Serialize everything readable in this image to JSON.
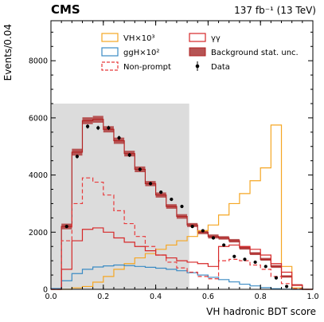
{
  "chart_data": {
    "type": "histogram",
    "experiment": "CMS",
    "lumi_label": "137 fb⁻¹ (13 TeV)",
    "xlabel": "VH hadronic BDT score",
    "ylabel": "Events/0.04",
    "xlim": [
      0,
      1
    ],
    "ylim": [
      0,
      9400
    ],
    "x_ticks": [
      "0.0",
      "0.2",
      "0.4",
      "0.6",
      "0.8",
      "1.0"
    ],
    "y_ticks": [
      "0",
      "2000",
      "4000",
      "6000",
      "8000"
    ],
    "bin_edges": [
      0.0,
      0.04,
      0.08,
      0.12,
      0.16,
      0.2,
      0.24,
      0.28,
      0.32,
      0.36,
      0.4,
      0.44,
      0.48,
      0.52,
      0.56,
      0.6,
      0.64,
      0.68,
      0.72,
      0.76,
      0.8,
      0.84,
      0.88,
      0.92,
      0.96,
      1.0
    ],
    "blinded_region": {
      "x": [
        0.0,
        0.528
      ],
      "y_top": 6500
    },
    "legend": {
      "columns": [
        [
          "VH×10³",
          "ggH×10²",
          "Non-prompt"
        ],
        [
          "γγ",
          "Background stat. unc.",
          "Data"
        ]
      ]
    },
    "series": [
      {
        "name": "VH×10³",
        "style": "step",
        "color": "#f5a623",
        "values": [
          0,
          0,
          50,
          100,
          250,
          450,
          700,
          900,
          1100,
          1250,
          1400,
          1550,
          1700,
          1850,
          2050,
          2250,
          2600,
          3000,
          3350,
          3800,
          4250,
          5750,
          800,
          50,
          0
        ]
      },
      {
        "name": "ggH×10²",
        "style": "step",
        "color": "#3b8bc4",
        "values": [
          30,
          300,
          550,
          700,
          780,
          820,
          850,
          830,
          800,
          770,
          740,
          700,
          650,
          580,
          500,
          420,
          340,
          260,
          180,
          120,
          60,
          20,
          5,
          0,
          0
        ]
      },
      {
        "name": "Non-prompt",
        "style": "dashed-step",
        "color": "#e8393a",
        "values": [
          0,
          1700,
          3000,
          3900,
          3750,
          3300,
          2750,
          2300,
          1850,
          1500,
          1200,
          950,
          750,
          600,
          450,
          370,
          1000,
          1050,
          1000,
          850,
          700,
          450,
          200,
          20,
          0
        ]
      },
      {
        "name": "γγ",
        "style": "step",
        "color": "#d62728",
        "values": [
          0,
          700,
          1700,
          2100,
          2150,
          2000,
          1800,
          1650,
          1500,
          1350,
          1200,
          1100,
          1000,
          950,
          900,
          800,
          1500,
          1550,
          1500,
          1400,
          1200,
          900,
          600,
          150,
          0
        ]
      },
      {
        "name": "Background stat. unc.",
        "style": "band",
        "color": "#b65454",
        "values": [
          0,
          2200,
          4800,
          5900,
          5950,
          5600,
          5200,
          4750,
          4200,
          3700,
          3300,
          2900,
          2550,
          2250,
          2000,
          1850,
          1800,
          1700,
          1450,
          1250,
          1050,
          800,
          450,
          150,
          0
        ],
        "uncertainty": [
          0,
          100,
          120,
          120,
          120,
          110,
          110,
          100,
          100,
          90,
          90,
          80,
          80,
          70,
          70,
          70,
          60,
          60,
          60,
          50,
          50,
          50,
          40,
          30,
          0
        ]
      },
      {
        "name": "Data",
        "style": "points",
        "color": "#000000",
        "x": [
          0.06,
          0.1,
          0.14,
          0.18,
          0.22,
          0.26,
          0.3,
          0.34,
          0.38,
          0.42,
          0.46,
          0.5,
          0.54,
          0.58,
          0.62,
          0.66,
          0.7,
          0.74,
          0.78,
          0.82,
          0.86,
          0.9
        ],
        "y": [
          2200,
          4650,
          5700,
          5650,
          5650,
          5300,
          4700,
          4200,
          3700,
          3400,
          3150,
          2900,
          2200,
          2050,
          1800,
          1550,
          1150,
          1050,
          950,
          800,
          400,
          100
        ]
      }
    ]
  }
}
